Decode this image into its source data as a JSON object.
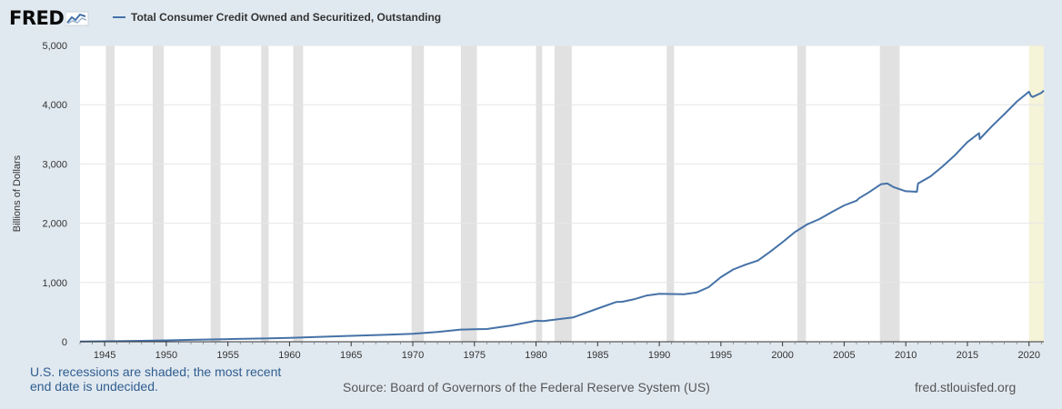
{
  "header": {
    "logo_text": "FRED",
    "logo_icon": "fred-line-graph-icon"
  },
  "colors": {
    "background": "#e1e9f0",
    "plot_background": "#ffffff",
    "series_line": "#4572a7",
    "recession_shade": "#e1e1e1",
    "undecided_shade": "#f5f3d8",
    "note_text": "#2f5d8f"
  },
  "footer": {
    "note": "U.S. recessions are shaded; the most recent end date is undecided.",
    "source": "Source: Board of Governors of the Federal Reserve System (US)",
    "site": "fred.stlouisfed.org"
  },
  "chart_data": {
    "type": "line",
    "title": "",
    "xlabel": "",
    "ylabel": "Billions of Dollars",
    "xlim": [
      1943.0,
      2021.2
    ],
    "ylim": [
      0,
      5000
    ],
    "x_ticks": [
      1945,
      1950,
      1955,
      1960,
      1965,
      1970,
      1975,
      1980,
      1985,
      1990,
      1995,
      2000,
      2005,
      2010,
      2015,
      2020
    ],
    "y_ticks": [
      0,
      1000,
      2000,
      3000,
      4000,
      5000
    ],
    "y_tick_labels": [
      "0",
      "1,000",
      "2,000",
      "3,000",
      "4,000",
      "5,000"
    ],
    "grid": "horizontal",
    "legend": "top-left",
    "series": [
      {
        "name": "Total Consumer Credit Owned and Securitized, Outstanding",
        "x": [
          1943.0,
          1945.0,
          1946.0,
          1948.0,
          1950.0,
          1952.0,
          1955.0,
          1958.0,
          1960.0,
          1965.0,
          1968.0,
          1970.0,
          1972.0,
          1973.9,
          1975.0,
          1976.0,
          1978.0,
          1980.0,
          1980.6,
          1982.0,
          1983.0,
          1985.0,
          1986.5,
          1987.0,
          1988.0,
          1989.0,
          1990.0,
          1991.0,
          1992.0,
          1993.0,
          1994.0,
          1995.0,
          1996.0,
          1997.0,
          1998.0,
          1999.0,
          2000.0,
          2001.0,
          2002.0,
          2003.0,
          2004.0,
          2005.0,
          2006.0,
          2006.2,
          2007.0,
          2008.0,
          2008.5,
          2009.0,
          2010.0,
          2010.9,
          2011.0,
          2012.0,
          2013.0,
          2014.0,
          2015.0,
          2015.95,
          2016.0,
          2017.0,
          2018.0,
          2019.0,
          2020.0,
          2020.15,
          2020.3,
          2021.0,
          2021.2
        ],
        "values": [
          5,
          7,
          9,
          15,
          23,
          32,
          45,
          55,
          65,
          100,
          120,
          135,
          165,
          205,
          210,
          215,
          275,
          355,
          350,
          385,
          410,
          560,
          670,
          675,
          720,
          780,
          810,
          805,
          800,
          830,
          920,
          1090,
          1220,
          1300,
          1370,
          1520,
          1680,
          1850,
          1980,
          2070,
          2190,
          2300,
          2380,
          2420,
          2520,
          2660,
          2670,
          2610,
          2540,
          2530,
          2670,
          2790,
          2960,
          3150,
          3370,
          3520,
          3420,
          3640,
          3840,
          4050,
          4220,
          4150,
          4130,
          4200,
          4240
        ]
      }
    ],
    "recessions": [
      [
        1945.1,
        1945.8
      ],
      [
        1948.9,
        1949.8
      ],
      [
        1953.6,
        1954.4
      ],
      [
        1957.7,
        1958.3
      ],
      [
        1960.3,
        1961.1
      ],
      [
        1969.9,
        1970.9
      ],
      [
        1973.9,
        1975.2
      ],
      [
        1980.0,
        1980.5
      ],
      [
        1981.5,
        1982.9
      ],
      [
        1990.6,
        1991.2
      ],
      [
        2001.2,
        2001.9
      ],
      [
        2007.9,
        2009.5
      ]
    ],
    "undecided_recession": [
      2020.0,
      2021.2
    ]
  }
}
